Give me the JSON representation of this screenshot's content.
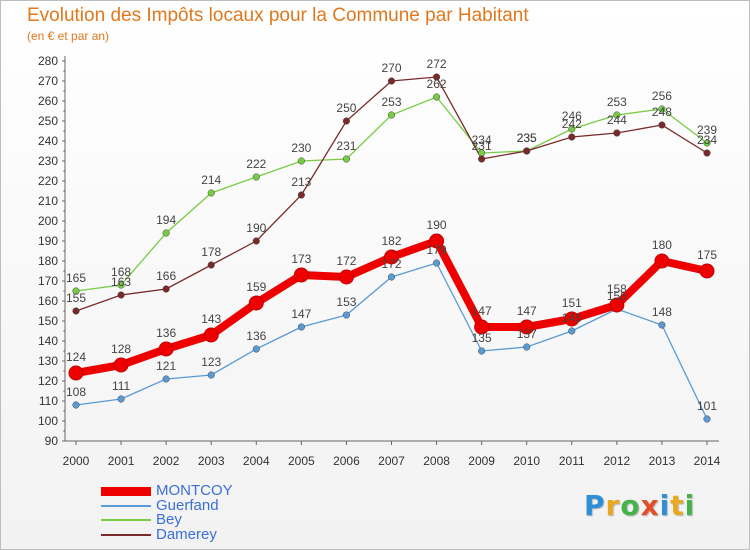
{
  "header": {
    "title": "Evolution des Impôts locaux pour la Commune par Habitant",
    "subtitle": "(en € et par an)"
  },
  "logo": {
    "letters": [
      "P",
      "r",
      "o",
      "x",
      "i",
      "t",
      "i"
    ],
    "colors": [
      "#2f8fd6",
      "#e8a81f",
      "#45b24a",
      "#e2502a",
      "#2f8fd6",
      "#e8a81f",
      "#45b24a"
    ]
  },
  "chart_data": {
    "type": "line",
    "title": "Evolution des Impôts locaux pour la Commune par Habitant",
    "subtitle": "(en € et par an)",
    "xlabel": "",
    "ylabel": "",
    "x": [
      "2000",
      "2001",
      "2002",
      "2003",
      "2004",
      "2005",
      "2006",
      "2007",
      "2008",
      "2009",
      "2010",
      "2011",
      "2012",
      "2013",
      "2014"
    ],
    "ylim": [
      90,
      280
    ],
    "ytick_step": 10,
    "grid": false,
    "legend_position": "bottom-left",
    "series": [
      {
        "name": "MONTCOY",
        "color": "#ee0000",
        "thick": true,
        "values": [
          124,
          128,
          136,
          143,
          159,
          173,
          172,
          182,
          190,
          147,
          147,
          151,
          158,
          180,
          175
        ]
      },
      {
        "name": "Guerfand",
        "color": "#5b9bd5",
        "thick": false,
        "values": [
          108,
          111,
          121,
          123,
          136,
          147,
          153,
          172,
          179,
          135,
          137,
          145,
          156,
          148,
          101
        ]
      },
      {
        "name": "Bey",
        "color": "#77cc44",
        "thick": false,
        "values": [
          165,
          168,
          194,
          214,
          222,
          230,
          231,
          253,
          262,
          234,
          235,
          246,
          253,
          256,
          239
        ]
      },
      {
        "name": "Damerey",
        "color": "#7a2a2a",
        "thick": false,
        "values": [
          155,
          163,
          166,
          178,
          190,
          213,
          250,
          270,
          272,
          231,
          235,
          242,
          244,
          248,
          234
        ]
      }
    ]
  }
}
